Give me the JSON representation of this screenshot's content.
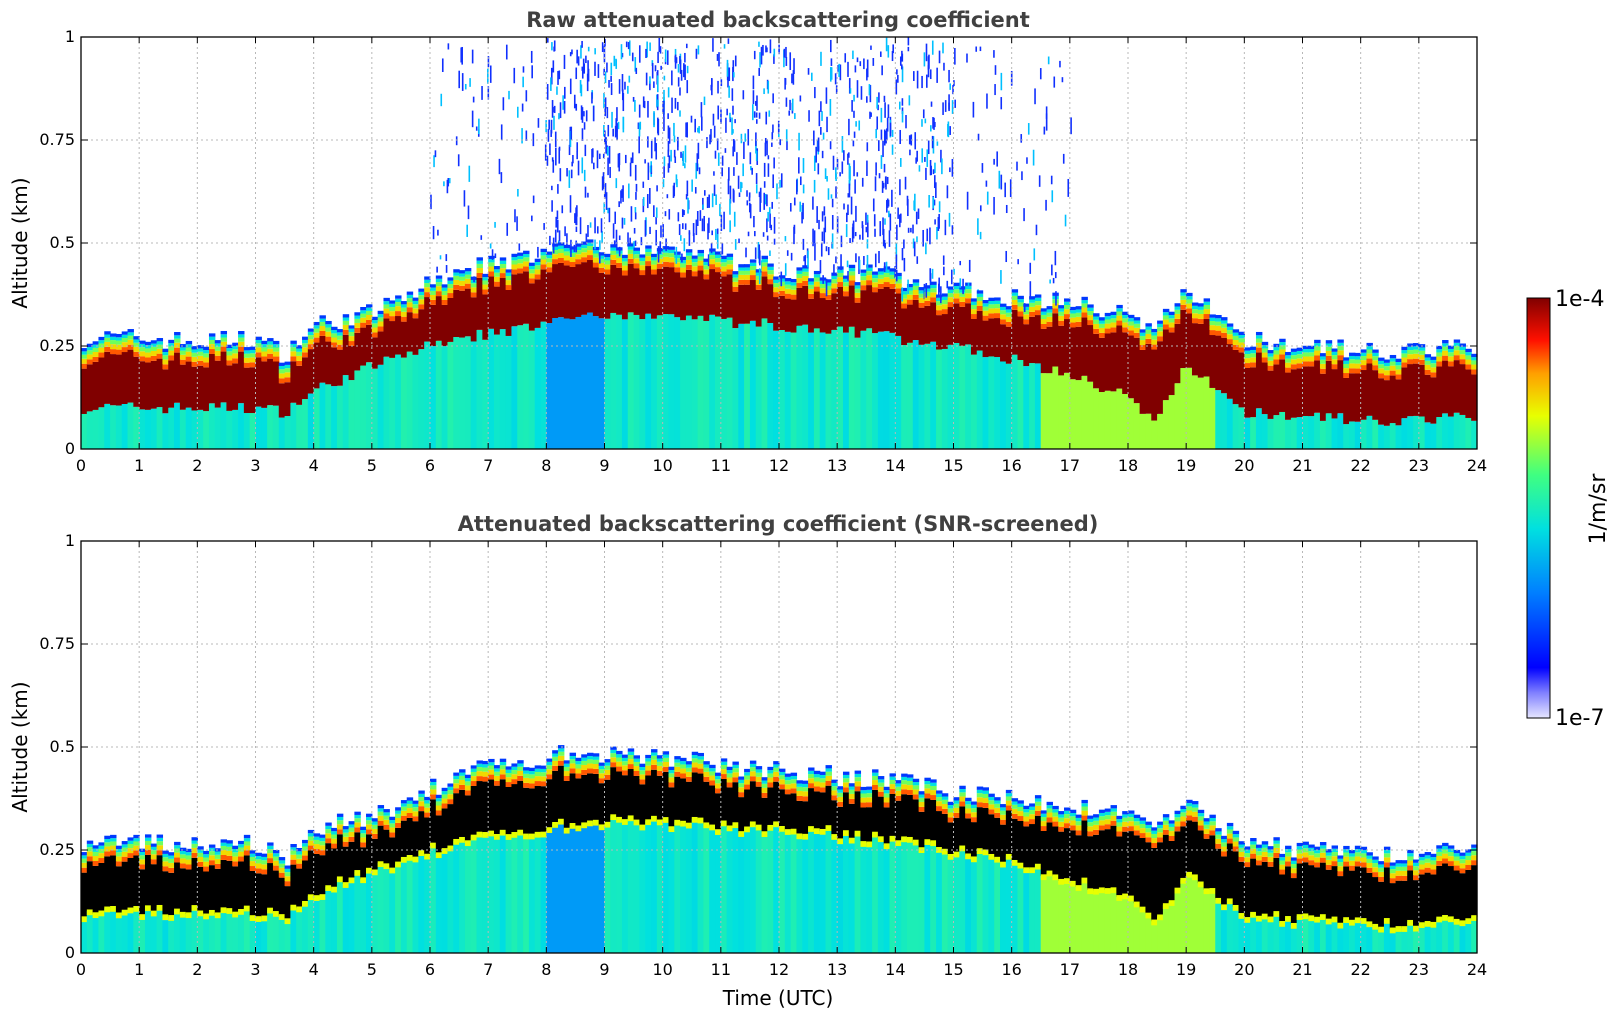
{
  "chart_data": [
    {
      "type": "heatmap",
      "title": "Raw attenuated backscattering coefficient",
      "xlabel": "",
      "ylabel": "Altitude (km)",
      "xlim": [
        0,
        24
      ],
      "ylim": [
        0,
        1
      ],
      "xticks": [
        "0",
        "1",
        "2",
        "3",
        "4",
        "5",
        "6",
        "7",
        "8",
        "9",
        "10",
        "11",
        "12",
        "13",
        "14",
        "15",
        "16",
        "17",
        "18",
        "19",
        "20",
        "21",
        "22",
        "23",
        "24"
      ],
      "yticks": [
        "0",
        "0.25",
        "0.5",
        "0.75",
        "1"
      ],
      "grid": true,
      "x_hours": [
        0,
        1,
        2,
        3,
        3.5,
        4,
        5,
        6,
        7,
        8,
        8.5,
        9,
        10,
        11,
        12,
        13,
        14,
        15,
        16,
        17,
        18,
        18.5,
        19,
        20,
        21,
        22,
        23,
        24
      ],
      "layer_top_km": [
        0.27,
        0.27,
        0.26,
        0.27,
        0.23,
        0.3,
        0.33,
        0.4,
        0.45,
        0.47,
        0.5,
        0.48,
        0.48,
        0.46,
        0.44,
        0.43,
        0.42,
        0.39,
        0.37,
        0.36,
        0.33,
        0.3,
        0.38,
        0.27,
        0.25,
        0.24,
        0.24,
        0.25
      ],
      "layer_base_km": [
        0.1,
        0.1,
        0.1,
        0.1,
        0.09,
        0.14,
        0.2,
        0.25,
        0.28,
        0.3,
        0.32,
        0.32,
        0.32,
        0.31,
        0.3,
        0.29,
        0.27,
        0.25,
        0.22,
        0.18,
        0.13,
        0.07,
        0.2,
        0.09,
        0.08,
        0.07,
        0.07,
        0.08
      ],
      "noise_above_layer": true
    },
    {
      "type": "heatmap",
      "title": "Attenuated backscattering coefficient (SNR-screened)",
      "xlabel": "Time (UTC)",
      "ylabel": "Altitude (km)",
      "xlim": [
        0,
        24
      ],
      "ylim": [
        0,
        1
      ],
      "xticks": [
        "0",
        "1",
        "2",
        "3",
        "4",
        "5",
        "6",
        "7",
        "8",
        "9",
        "10",
        "11",
        "12",
        "13",
        "14",
        "15",
        "16",
        "17",
        "18",
        "19",
        "20",
        "21",
        "22",
        "23",
        "24"
      ],
      "yticks": [
        "0",
        "0.25",
        "0.5",
        "0.75",
        "1"
      ],
      "grid": true,
      "x_hours": [
        0,
        1,
        2,
        3,
        3.5,
        4,
        5,
        6,
        7,
        8,
        8.5,
        9,
        10,
        11,
        12,
        13,
        14,
        15,
        16,
        17,
        18,
        18.5,
        19,
        20,
        21,
        22,
        23,
        24
      ],
      "layer_top_km": [
        0.27,
        0.27,
        0.26,
        0.27,
        0.23,
        0.3,
        0.33,
        0.4,
        0.45,
        0.47,
        0.5,
        0.48,
        0.48,
        0.46,
        0.44,
        0.43,
        0.42,
        0.39,
        0.37,
        0.36,
        0.33,
        0.3,
        0.38,
        0.27,
        0.25,
        0.24,
        0.24,
        0.25
      ],
      "layer_base_km": [
        0.1,
        0.1,
        0.1,
        0.1,
        0.09,
        0.14,
        0.2,
        0.25,
        0.28,
        0.3,
        0.32,
        0.32,
        0.32,
        0.31,
        0.3,
        0.29,
        0.27,
        0.25,
        0.22,
        0.18,
        0.13,
        0.07,
        0.2,
        0.09,
        0.08,
        0.07,
        0.07,
        0.08
      ],
      "noise_above_layer": false,
      "saturated_color": "#000000"
    }
  ],
  "colorbar": {
    "label": "1/m/sr",
    "max_label": "1e-4",
    "min_label": "1e-7",
    "scale": "log",
    "colormap": "jet",
    "range": [
      1e-07,
      0.0001
    ]
  },
  "colors": {
    "title": "#404040",
    "background": "#ffffff",
    "saturated_raw": "#800000",
    "saturated_screened": "#000000"
  }
}
